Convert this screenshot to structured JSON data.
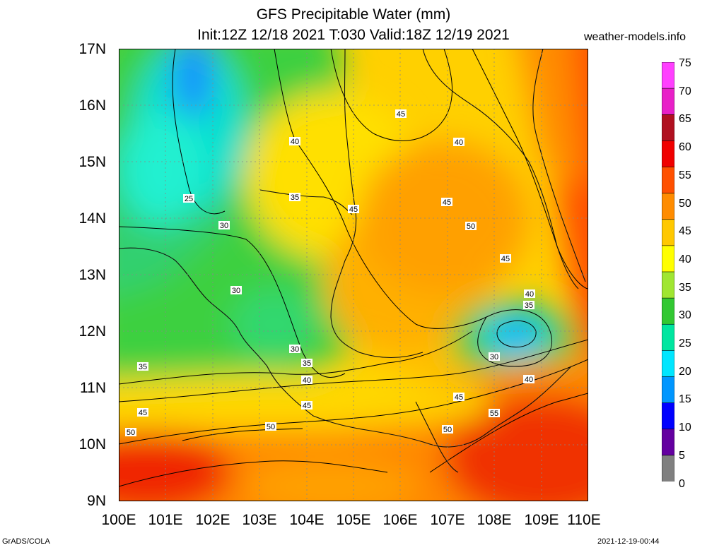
{
  "title_line1": "GFS Precipitable Water (mm)",
  "title_line2": "Init:12Z 12/18 2021 T:030 Valid:18Z 12/19 2021",
  "site": "weather-models.info",
  "lat_labels": [
    "17N",
    "16N",
    "15N",
    "14N",
    "13N",
    "12N",
    "11N",
    "10N",
    "9N"
  ],
  "lon_labels": [
    "100E",
    "101E",
    "102E",
    "103E",
    "104E",
    "105E",
    "106E",
    "107E",
    "108E",
    "109E",
    "110E"
  ],
  "colorbar": {
    "labels": [
      "75",
      "70",
      "65",
      "60",
      "55",
      "50",
      "45",
      "40",
      "35",
      "30",
      "25",
      "20",
      "15",
      "10",
      "5",
      "0"
    ],
    "colors": [
      "#ff40ff",
      "#e820c8",
      "#b01020",
      "#f00000",
      "#ff5000",
      "#ff8c00",
      "#ffc800",
      "#ffff00",
      "#a0e632",
      "#32c832",
      "#00e6a0",
      "#00e6ff",
      "#0096ff",
      "#0000ff",
      "#6400a0",
      "#808080"
    ]
  },
  "contour_labels": [
    "45",
    "40",
    "40",
    "25",
    "35",
    "45",
    "45",
    "30",
    "50",
    "45",
    "30",
    "40",
    "35",
    "30",
    "30",
    "35",
    "40",
    "45",
    "45",
    "50",
    "50",
    "55",
    "50",
    "35",
    "40",
    "45"
  ],
  "footer_left": "GrADS/COLA",
  "footer_right": "2021-12-19-00:44"
}
